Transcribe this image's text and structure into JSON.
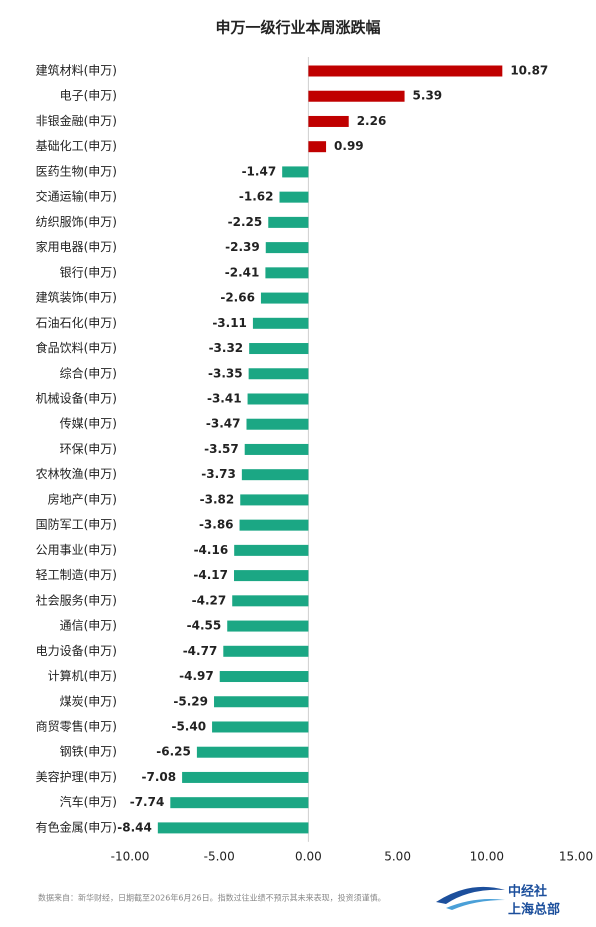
{
  "chart_data": {
    "type": "bar",
    "orientation": "horizontal",
    "title": "申万一级行业本周涨跌幅",
    "categories": [
      "建筑材料(申万)",
      "电子(申万)",
      "非银金融(申万)",
      "基础化工(申万)",
      "医药生物(申万)",
      "交通运输(申万)",
      "纺织服饰(申万)",
      "家用电器(申万)",
      "银行(申万)",
      "建筑装饰(申万)",
      "石油石化(申万)",
      "食品饮料(申万)",
      "综合(申万)",
      "机械设备(申万)",
      "传媒(申万)",
      "环保(申万)",
      "农林牧渔(申万)",
      "房地产(申万)",
      "国防军工(申万)",
      "公用事业(申万)",
      "轻工制造(申万)",
      "社会服务(申万)",
      "通信(申万)",
      "电力设备(申万)",
      "计算机(申万)",
      "煤炭(申万)",
      "商贸零售(申万)",
      "钢铁(申万)",
      "美容护理(申万)",
      "汽车(申万)",
      "有色金属(申万)"
    ],
    "values": [
      10.87,
      5.39,
      2.26,
      0.99,
      -1.47,
      -1.62,
      -2.25,
      -2.39,
      -2.41,
      -2.66,
      -3.11,
      -3.32,
      -3.35,
      -3.41,
      -3.47,
      -3.57,
      -3.73,
      -3.82,
      -3.86,
      -4.16,
      -4.17,
      -4.27,
      -4.55,
      -4.77,
      -4.97,
      -5.29,
      -5.4,
      -6.25,
      -7.08,
      -7.74,
      -8.44
    ],
    "value_labels": [
      "10.87",
      "5.39",
      "2.26",
      "0.99",
      "-1.47",
      "-1.62",
      "-2.25",
      "-2.39",
      "-2.41",
      "-2.66",
      "-3.11",
      "-3.32",
      "-3.35",
      "-3.41",
      "-3.47",
      "-3.57",
      "-3.73",
      "-3.82",
      "-3.86",
      "-4.16",
      "-4.17",
      "-4.27",
      "-4.55",
      "-4.77",
      "-4.97",
      "-5.29",
      "-5.40",
      "-6.25",
      "-7.08",
      "-7.74",
      "-8.44"
    ],
    "colors": {
      "positive": "#c00000",
      "negative": "#1ba784"
    },
    "xlim": [
      -10,
      15
    ],
    "xticks": [
      {
        "value": -10,
        "label": "-10.00"
      },
      {
        "value": -5,
        "label": "-5.00"
      },
      {
        "value": 0,
        "label": "0.00"
      },
      {
        "value": 5,
        "label": "5.00"
      },
      {
        "value": 10,
        "label": "10.00"
      },
      {
        "value": 15,
        "label": "15.00"
      }
    ],
    "grid": false
  },
  "footer": {
    "source": "数据来自：新华财经，日期截至2026年6月26日。指数过往业绩不预示其未来表现，投资须谨慎。"
  },
  "logo": {
    "name": "中经社",
    "sub": "上海总部"
  }
}
